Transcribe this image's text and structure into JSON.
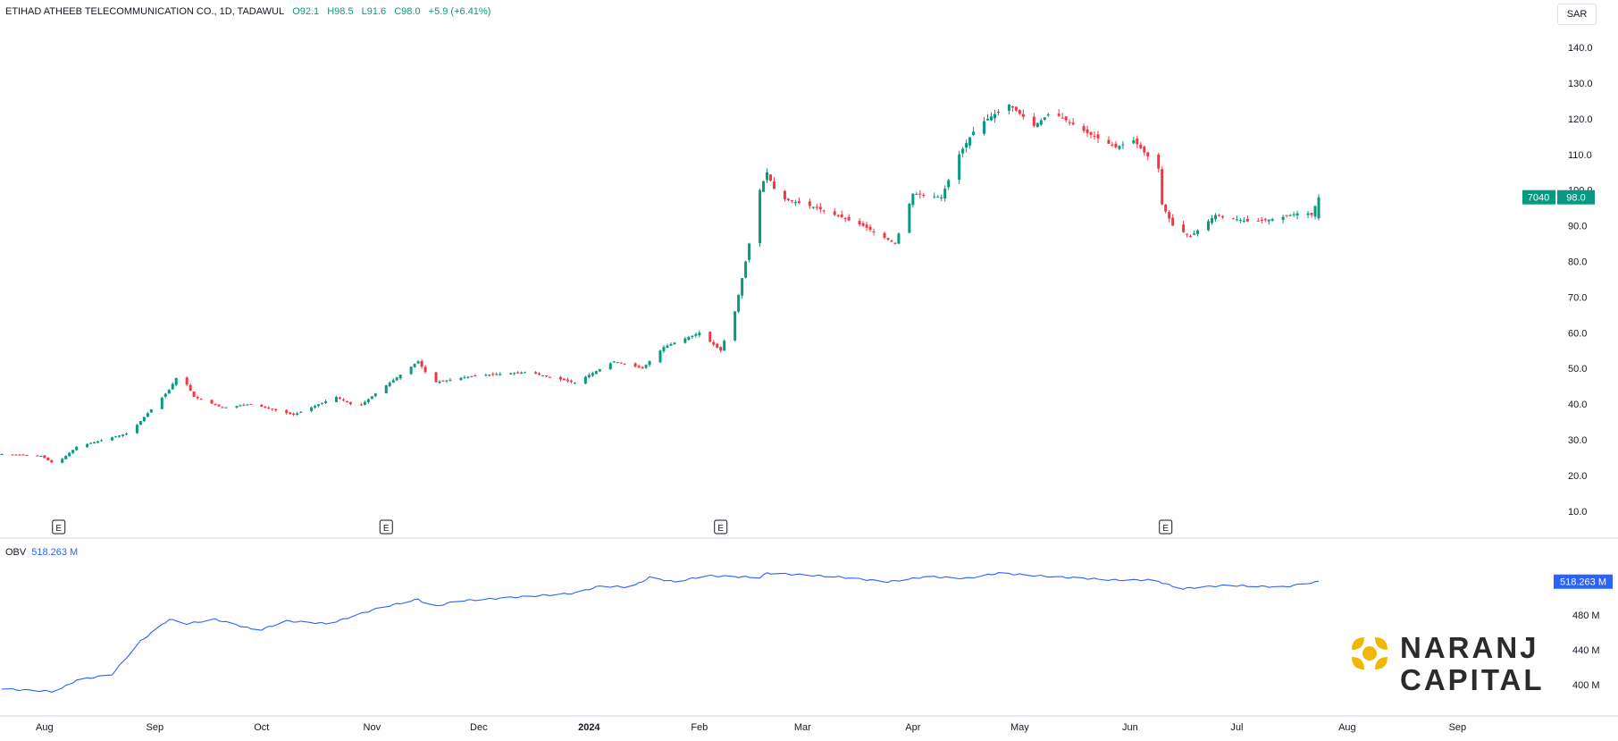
{
  "header": {
    "symbol": "ETIHAD ATHEEB TELECOMMUNICATION CO., 1D, TADAWUL",
    "open": "O92.1",
    "high": "H98.5",
    "low": "L91.6",
    "close": "C98.0",
    "change": "+5.9 (+6.41%)",
    "currency": "SAR"
  },
  "price_tag": {
    "ticker": "7040",
    "last": "98.0"
  },
  "obv": {
    "label": "OBV",
    "value": "518.263 M",
    "tag": "518.263 M"
  },
  "earnings_marker": "E",
  "brand": {
    "line1": "NARANJ",
    "line2": "CAPITAL"
  },
  "colors": {
    "up": "#089981",
    "down": "#f23645",
    "obv_line": "#2962ff",
    "tag_green": "#089981",
    "tag_blue": "#2962ff",
    "logo_gold": "#f2b705"
  },
  "chart_data": [
    {
      "type": "candlestick",
      "x_axis_labels": [
        "Aug",
        "Sep",
        "Oct",
        "Nov",
        "Dec",
        "2024",
        "Feb",
        "Mar",
        "Apr",
        "May",
        "Jun",
        "Jul",
        "Aug",
        "Sep"
      ],
      "y_ticks": [
        "140.0",
        "130.0",
        "120.0",
        "110.0",
        "100.0",
        "90.0",
        "80.0",
        "70.0",
        "60.0",
        "50.0",
        "40.0",
        "30.0",
        "20.0",
        "10.0"
      ],
      "ylim": [
        5,
        145
      ],
      "earnings_months": [
        "Aug",
        "Nov",
        "Feb",
        "Jun"
      ],
      "anchors": [
        [
          "2023-07-20",
          26
        ],
        [
          "2023-07-31",
          25.5
        ],
        [
          "2023-08-04",
          23
        ],
        [
          "2023-08-10",
          28
        ],
        [
          "2023-08-25",
          32
        ],
        [
          "2023-09-05",
          44
        ],
        [
          "2023-09-08",
          49
        ],
        [
          "2023-09-12",
          42
        ],
        [
          "2023-09-20",
          39
        ],
        [
          "2023-09-28",
          40
        ],
        [
          "2023-10-10",
          37
        ],
        [
          "2023-10-22",
          42
        ],
        [
          "2023-10-28",
          39
        ],
        [
          "2023-11-02",
          43
        ],
        [
          "2023-11-14",
          52
        ],
        [
          "2023-11-18",
          46
        ],
        [
          "2023-11-30",
          48
        ],
        [
          "2023-12-15",
          49
        ],
        [
          "2023-12-28",
          46
        ],
        [
          "2024-01-08",
          52
        ],
        [
          "2024-01-16",
          50
        ],
        [
          "2024-01-22",
          56
        ],
        [
          "2024-02-01",
          60
        ],
        [
          "2024-02-07",
          55
        ],
        [
          "2024-02-11",
          66
        ],
        [
          "2024-02-14",
          80
        ],
        [
          "2024-02-18",
          100
        ],
        [
          "2024-02-20",
          105
        ],
        [
          "2024-02-23",
          98
        ],
        [
          "2024-03-05",
          95
        ],
        [
          "2024-03-18",
          90
        ],
        [
          "2024-03-27",
          85
        ],
        [
          "2024-04-01",
          99
        ],
        [
          "2024-04-09",
          98
        ],
        [
          "2024-04-14",
          110
        ],
        [
          "2024-04-19",
          118
        ],
        [
          "2024-04-28",
          124
        ],
        [
          "2024-05-05",
          118
        ],
        [
          "2024-05-10",
          122
        ],
        [
          "2024-05-20",
          116
        ],
        [
          "2024-05-28",
          112
        ],
        [
          "2024-06-02",
          114
        ],
        [
          "2024-06-09",
          106
        ],
        [
          "2024-06-10",
          96
        ],
        [
          "2024-06-13",
          90
        ],
        [
          "2024-06-18",
          87
        ],
        [
          "2024-06-25",
          93
        ],
        [
          "2024-07-05",
          91
        ],
        [
          "2024-07-12",
          92
        ],
        [
          "2024-07-20",
          94
        ],
        [
          "2024-07-22",
          93
        ],
        [
          "2024-07-24",
          98
        ]
      ],
      "last": {
        "open": 92.1,
        "high": 98.5,
        "low": 91.6,
        "close": 98.0
      }
    },
    {
      "type": "line",
      "name": "OBV",
      "y_ticks": [
        "480 M",
        "440 M",
        "400 M"
      ],
      "ylim": [
        385,
        540
      ],
      "anchors": [
        [
          "2023-07-20",
          395
        ],
        [
          "2023-07-31",
          393
        ],
        [
          "2023-08-04",
          392
        ],
        [
          "2023-08-10",
          405
        ],
        [
          "2023-08-20",
          412
        ],
        [
          "2023-08-28",
          450
        ],
        [
          "2023-09-05",
          475
        ],
        [
          "2023-09-10",
          470
        ],
        [
          "2023-09-18",
          475
        ],
        [
          "2023-09-30",
          462
        ],
        [
          "2023-10-08",
          473
        ],
        [
          "2023-10-20",
          470
        ],
        [
          "2023-11-03",
          488
        ],
        [
          "2023-11-14",
          498
        ],
        [
          "2023-11-18",
          489
        ],
        [
          "2023-11-25",
          496
        ],
        [
          "2023-12-10",
          500
        ],
        [
          "2023-12-28",
          505
        ],
        [
          "2024-01-04",
          513
        ],
        [
          "2024-01-13",
          512
        ],
        [
          "2024-01-18",
          523
        ],
        [
          "2024-01-25",
          518
        ],
        [
          "2024-02-03",
          525
        ],
        [
          "2024-02-18",
          523
        ],
        [
          "2024-02-20",
          528
        ],
        [
          "2024-03-10",
          524
        ],
        [
          "2024-03-25",
          518
        ],
        [
          "2024-04-05",
          524
        ],
        [
          "2024-04-16",
          522
        ],
        [
          "2024-04-25",
          528
        ],
        [
          "2024-05-10",
          524
        ],
        [
          "2024-05-28",
          520
        ],
        [
          "2024-06-08",
          520
        ],
        [
          "2024-06-15",
          510
        ],
        [
          "2024-06-28",
          514
        ],
        [
          "2024-07-14",
          512
        ],
        [
          "2024-07-22",
          517
        ],
        [
          "2024-07-24",
          518.263
        ]
      ]
    }
  ]
}
